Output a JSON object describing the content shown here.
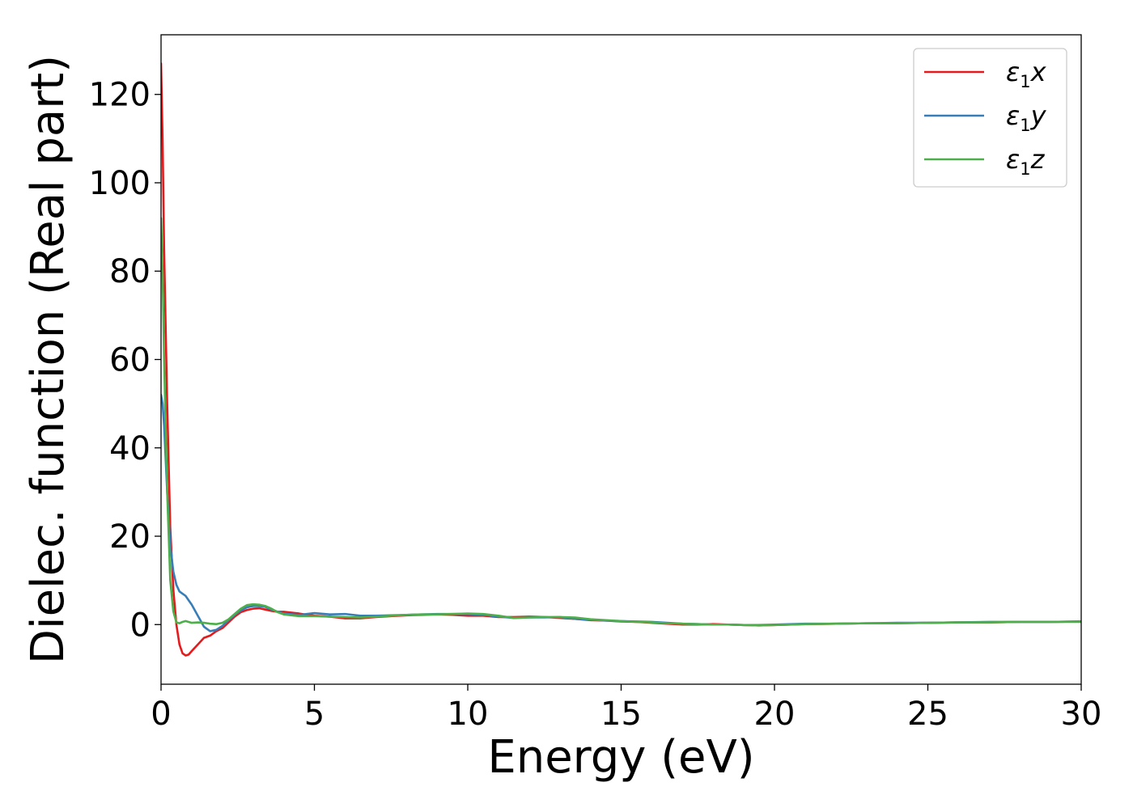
{
  "chart_data": {
    "type": "line",
    "title": "",
    "xlabel": "Energy (eV)",
    "ylabel": "Dielec. function (Real part)",
    "xlim": [
      0,
      30
    ],
    "ylim": [
      -13.5,
      133.5
    ],
    "xticks": [
      0,
      5,
      10,
      15,
      20,
      25,
      30
    ],
    "xtick_labels": [
      "0",
      "5",
      "10",
      "15",
      "20",
      "25",
      "30"
    ],
    "yticks": [
      0,
      20,
      40,
      60,
      80,
      100,
      120
    ],
    "ytick_labels": [
      "0",
      "20",
      "40",
      "60",
      "80",
      "100",
      "120"
    ],
    "grid": false,
    "legend_position": "top-right",
    "series": [
      {
        "name": "ε1x",
        "symbol": "ε",
        "subscript": "1",
        "component": "x",
        "color": "#e41a1c",
        "x": [
          0,
          0.05,
          0.1,
          0.2,
          0.3,
          0.4,
          0.5,
          0.6,
          0.7,
          0.8,
          0.9,
          1.0,
          1.2,
          1.4,
          1.6,
          1.8,
          2.0,
          2.2,
          2.4,
          2.6,
          2.8,
          3.0,
          3.2,
          3.4,
          3.6,
          3.8,
          4.0,
          4.5,
          5.0,
          5.5,
          6.0,
          6.5,
          7.0,
          7.5,
          8.0,
          8.5,
          9.0,
          9.5,
          10.0,
          10.5,
          11.0,
          11.5,
          12.0,
          12.5,
          13.0,
          13.5,
          14.0,
          14.5,
          15.0,
          15.5,
          16.0,
          16.5,
          17.0,
          17.5,
          18.0,
          18.5,
          19.0,
          19.5,
          20.0,
          21.0,
          22.0,
          23.0,
          24.0,
          25.0,
          26.0,
          27.0,
          28.0,
          29.0,
          30.0
        ],
        "y": [
          127,
          110,
          85,
          50,
          22,
          8,
          0,
          -4.5,
          -6.5,
          -7,
          -6.8,
          -6,
          -4.5,
          -3,
          -2.5,
          -1.5,
          -0.8,
          0.5,
          1.8,
          2.8,
          3.3,
          3.6,
          3.7,
          3.4,
          3.1,
          2.9,
          2.9,
          2.5,
          2.0,
          1.8,
          1.4,
          1.4,
          1.7,
          1.9,
          2.1,
          2.2,
          2.3,
          2.2,
          2.0,
          2.0,
          1.7,
          1.7,
          1.8,
          1.7,
          1.5,
          1.3,
          1.0,
          0.9,
          0.7,
          0.6,
          0.4,
          0.2,
          0.0,
          0.0,
          0.1,
          0.0,
          -0.1,
          -0.2,
          -0.1,
          0.1,
          0.2,
          0.3,
          0.3,
          0.4,
          0.5,
          0.5,
          0.6,
          0.6,
          0.7
        ]
      },
      {
        "name": "ε1y",
        "symbol": "ε",
        "subscript": "1",
        "component": "y",
        "color": "#377eb8",
        "x": [
          0,
          0.05,
          0.1,
          0.2,
          0.3,
          0.4,
          0.5,
          0.6,
          0.7,
          0.8,
          0.9,
          1.0,
          1.2,
          1.4,
          1.6,
          1.8,
          2.0,
          2.2,
          2.4,
          2.6,
          2.8,
          3.0,
          3.2,
          3.4,
          3.6,
          3.8,
          4.0,
          4.5,
          5.0,
          5.5,
          6.0,
          6.5,
          7.0,
          7.5,
          8.0,
          8.5,
          9.0,
          9.5,
          10.0,
          10.5,
          11.0,
          11.5,
          12.0,
          12.5,
          13.0,
          13.5,
          14.0,
          14.5,
          15.0,
          15.5,
          16.0,
          16.5,
          17.0,
          17.5,
          18.0,
          18.5,
          19.0,
          19.5,
          20.0,
          21.0,
          22.0,
          23.0,
          24.0,
          25.0,
          26.0,
          27.0,
          28.0,
          29.0,
          30.0
        ],
        "y": [
          52,
          50,
          45,
          30,
          18,
          12,
          9,
          7.5,
          7,
          6.5,
          5.5,
          4.5,
          2.0,
          -0.5,
          -1.5,
          -1.2,
          -0.3,
          1.0,
          2.2,
          3.2,
          3.9,
          4.2,
          4.2,
          4.0,
          3.4,
          2.9,
          2.5,
          2.2,
          2.6,
          2.3,
          2.4,
          2.0,
          2.0,
          2.1,
          2.2,
          2.3,
          2.4,
          2.4,
          2.4,
          2.2,
          1.8,
          1.5,
          1.6,
          1.6,
          1.7,
          1.3,
          1.1,
          0.9,
          0.8,
          0.7,
          0.6,
          0.4,
          0.2,
          0.1,
          0.0,
          0.0,
          -0.1,
          -0.1,
          0.0,
          0.2,
          0.2,
          0.3,
          0.4,
          0.4,
          0.5,
          0.6,
          0.6,
          0.6,
          0.7
        ]
      },
      {
        "name": "ε1z",
        "symbol": "ε",
        "subscript": "1",
        "component": "z",
        "color": "#4daf4a",
        "x": [
          0,
          0.05,
          0.1,
          0.2,
          0.3,
          0.4,
          0.5,
          0.6,
          0.7,
          0.8,
          0.9,
          1.0,
          1.2,
          1.4,
          1.6,
          1.8,
          2.0,
          2.2,
          2.4,
          2.6,
          2.8,
          3.0,
          3.2,
          3.4,
          3.6,
          3.8,
          4.0,
          4.5,
          5.0,
          5.5,
          6.0,
          6.5,
          7.0,
          7.5,
          8.0,
          8.5,
          9.0,
          9.5,
          10.0,
          10.5,
          11.0,
          11.5,
          12.0,
          12.5,
          13.0,
          13.5,
          14.0,
          14.5,
          15.0,
          15.5,
          16.0,
          16.5,
          17.0,
          17.5,
          18.0,
          18.5,
          19.0,
          19.5,
          20.0,
          21.0,
          22.0,
          23.0,
          24.0,
          25.0,
          26.0,
          27.0,
          28.0,
          29.0,
          30.0
        ],
        "y": [
          92,
          80,
          60,
          30,
          10,
          3,
          0.5,
          0.3,
          0.6,
          0.8,
          0.6,
          0.4,
          0.5,
          0.4,
          0.2,
          0.1,
          0.4,
          1.2,
          2.4,
          3.6,
          4.4,
          4.6,
          4.5,
          4.2,
          3.6,
          2.8,
          2.3,
          1.9,
          1.9,
          1.8,
          1.7,
          1.6,
          1.8,
          2.0,
          2.2,
          2.3,
          2.3,
          2.4,
          2.5,
          2.4,
          2.0,
          1.5,
          1.6,
          1.7,
          1.7,
          1.6,
          1.2,
          1.0,
          0.8,
          0.6,
          0.5,
          0.3,
          0.2,
          0.1,
          0.0,
          0.0,
          -0.1,
          -0.2,
          -0.1,
          0.1,
          0.2,
          0.3,
          0.3,
          0.4,
          0.5,
          0.5,
          0.6,
          0.6,
          0.6
        ]
      }
    ]
  }
}
